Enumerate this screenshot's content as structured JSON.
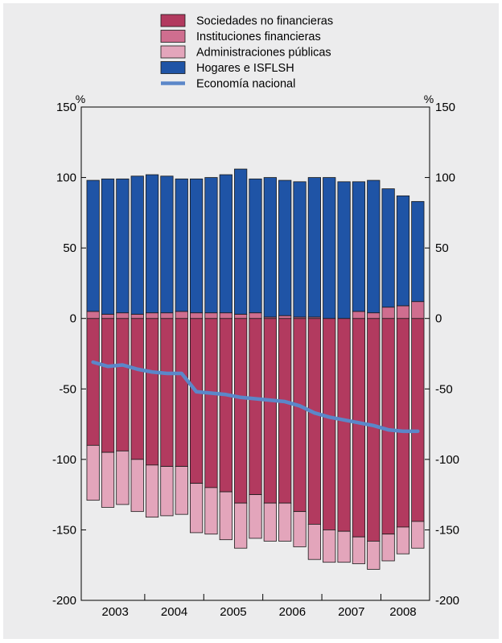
{
  "chart_data": {
    "type": "bar",
    "stacked": true,
    "y_unit_left": "%",
    "y_unit_right": "%",
    "ylim": [
      -200,
      150
    ],
    "yticks": [
      150,
      100,
      50,
      0,
      -50,
      -100,
      -150,
      -200
    ],
    "ytick_labels": [
      "150",
      "100",
      "50",
      "0",
      "-50",
      "-100",
      "-150",
      "-200"
    ],
    "x_year_labels": [
      "2003",
      "2004",
      "2005",
      "2006",
      "2007",
      "2008"
    ],
    "quarters_per_year": 4,
    "bar_count": 23,
    "grid": false,
    "legend_position": "top",
    "series": [
      {
        "name": "Sociedades no financieras",
        "kind": "bar",
        "color": "#b23a5f",
        "values": [
          -90,
          -95,
          -94,
          -100,
          -104,
          -105,
          -105,
          -117,
          -120,
          -123,
          -131,
          -125,
          -131,
          -131,
          -137,
          -146,
          -150,
          -151,
          -155,
          -158,
          -153,
          -148,
          -144
        ]
      },
      {
        "name": "Instituciones financieras",
        "kind": "bar",
        "color": "#cf6e8f",
        "values": [
          5,
          3,
          4,
          3,
          4,
          4,
          5,
          4,
          4,
          4,
          3,
          4,
          1,
          2,
          1,
          1,
          0,
          0,
          5,
          4,
          8,
          9,
          12
        ]
      },
      {
        "name": "Administraciones públicas",
        "kind": "bar",
        "color": "#e3a5bb",
        "values": [
          -39,
          -39,
          -38,
          -37,
          -37,
          -35,
          -34,
          -35,
          -33,
          -34,
          -32,
          -31,
          -27,
          -27,
          -25,
          -25,
          -23,
          -22,
          -19,
          -20,
          -19,
          -19,
          -19
        ]
      },
      {
        "name": "Hogares e ISFLSH",
        "kind": "bar",
        "color": "#1f54a6",
        "values": [
          93,
          96,
          95,
          98,
          98,
          97,
          94,
          95,
          96,
          98,
          103,
          95,
          99,
          96,
          96,
          99,
          100,
          97,
          92,
          94,
          84,
          78,
          71
        ]
      },
      {
        "name": "Economía nacional",
        "kind": "line",
        "color": "#5b87c9",
        "values": [
          -31,
          -34,
          -33,
          -36,
          -38,
          -39,
          -39,
          -52,
          -53,
          -54,
          -56,
          -57,
          -58,
          -59,
          -62,
          -67,
          -70,
          -72,
          -74,
          -76,
          -79,
          -80,
          -80
        ]
      }
    ]
  }
}
